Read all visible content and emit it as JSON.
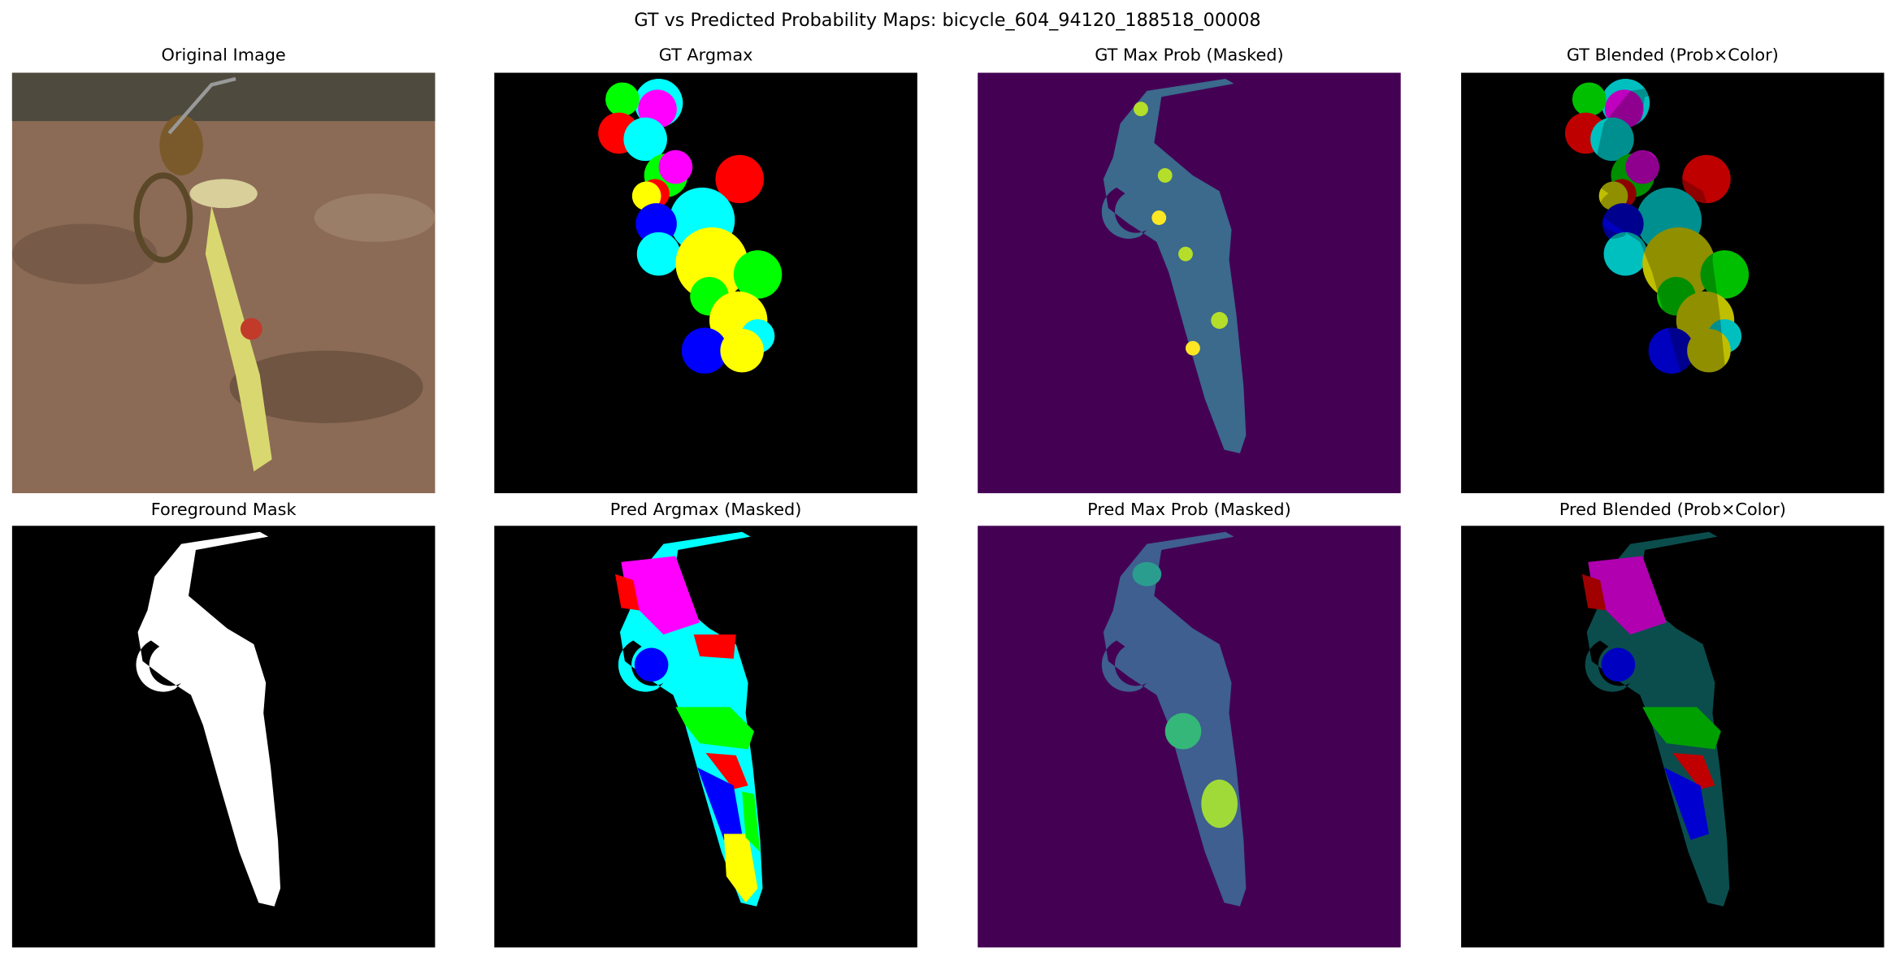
{
  "title": "GT vs Predicted Probability Maps: bicycle_604_94120_188518_00008",
  "panels": [
    {
      "title": "Original Image"
    },
    {
      "title": "GT Argmax"
    },
    {
      "title": "GT Max Prob (Masked)"
    },
    {
      "title": "GT Blended (Prob×Color)"
    },
    {
      "title": "Foreground Mask"
    },
    {
      "title": "Pred Argmax (Masked)"
    },
    {
      "title": "Pred Max Prob (Masked)"
    },
    {
      "title": "Pred Blended (Prob×Color)"
    }
  ]
}
